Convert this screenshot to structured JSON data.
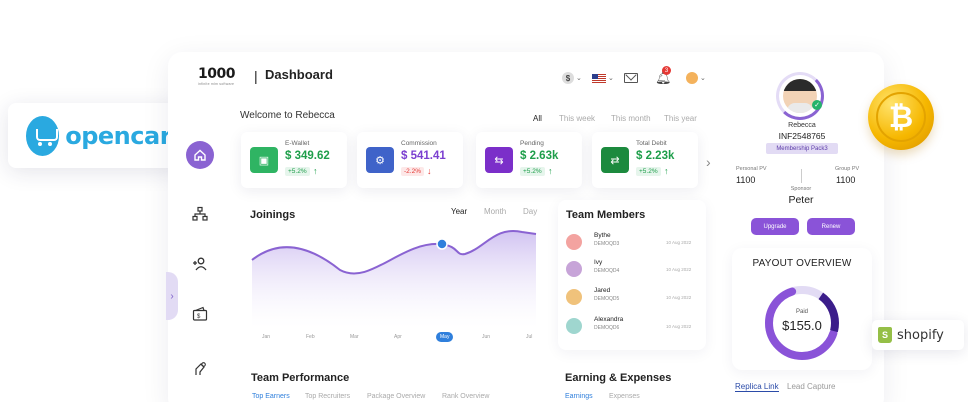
{
  "header": {
    "logo_text": "1000",
    "logo_sub": "infinite mlm software",
    "title": "Dashboard",
    "currency_symbol": "$",
    "notification_count": "3"
  },
  "opencart": {
    "label": "opencart"
  },
  "welcome": "Welcome to Rebecca",
  "periods": [
    "All",
    "This week",
    "This month",
    "This year"
  ],
  "stats": [
    {
      "label": "E-Wallet",
      "value": "$ 349.62",
      "change": "+5.2%",
      "direction": "up"
    },
    {
      "label": "Commission",
      "value": "$ 541.41",
      "change": "-2.2%",
      "direction": "down"
    },
    {
      "label": "Pending",
      "value": "$ 2.63k",
      "change": "+5.2%",
      "direction": "up"
    },
    {
      "label": "Total Debit",
      "value": "$ 2.23k",
      "change": "+5.2%",
      "direction": "up"
    }
  ],
  "joinings": {
    "title": "Joinings",
    "segments": [
      "Year",
      "Month",
      "Day"
    ],
    "months": [
      "Jan",
      "Feb",
      "Mar",
      "Apr",
      "May",
      "Jun",
      "Jul"
    ],
    "active_month": "May"
  },
  "team_members": {
    "title": "Team Members",
    "members": [
      {
        "name": "Bythe",
        "id": "DEMOQD3",
        "date": "10 Aug 2022"
      },
      {
        "name": "Ivy",
        "id": "DEMOQD4",
        "date": "10 Aug 2022"
      },
      {
        "name": "Jared",
        "id": "DEMOQD5",
        "date": "10 Aug 2022"
      },
      {
        "name": "Alexandra",
        "id": "DEMOQD6",
        "date": "10 Aug 2022"
      }
    ]
  },
  "team_performance": {
    "title": "Team Performance",
    "tabs": [
      "Top Earners",
      "Top Recruiters",
      "Package Overview",
      "Rank Overview"
    ]
  },
  "earnings": {
    "title": "Earning & Expenses",
    "tabs": [
      "Earnings",
      "Expenses"
    ]
  },
  "profile": {
    "name": "Rebecca",
    "id": "INF2548765",
    "package": "Membership Pack3",
    "personal_pv_label": "Personal PV",
    "personal_pv": "1100",
    "group_pv_label": "Group PV",
    "group_pv": "1100",
    "sponsor_label": "Sponsor",
    "sponsor": "Peter",
    "upgrade_label": "Upgrade",
    "renew_label": "Renew"
  },
  "payout": {
    "title": "PAYOUT OVERVIEW",
    "paid_label": "Paid",
    "paid_value": "$155.0",
    "paid_fraction": 0.65
  },
  "links": {
    "replica": "Replica Link",
    "lead": "Lead Capture"
  },
  "shopify": {
    "label": "shopify"
  },
  "colors": {
    "accent": "#8a63d2",
    "green": "#1e9e4a",
    "red": "#e53935",
    "blue": "#2f7fdc",
    "bitcoin": "#f6b700",
    "opencart": "#2aa9e0",
    "shopify": "#95bf47"
  }
}
